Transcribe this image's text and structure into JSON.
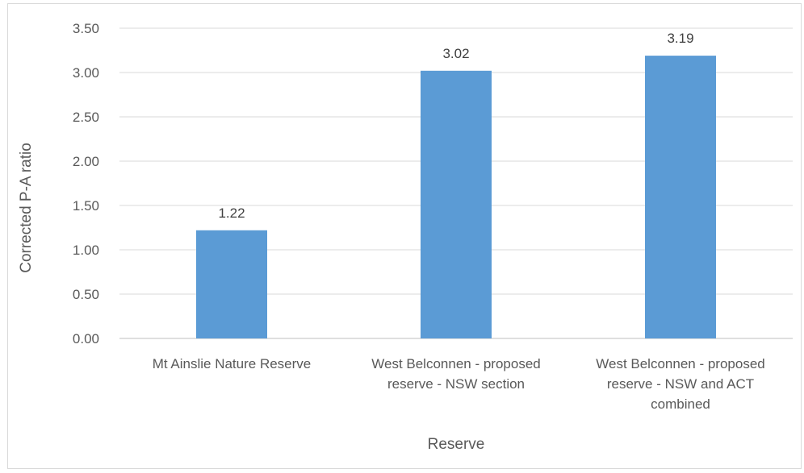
{
  "chart_data": {
    "type": "bar",
    "title": "",
    "xlabel": "Reserve",
    "ylabel": "Corrected P-A ratio",
    "categories": [
      [
        "Mt Ainslie Nature Reserve"
      ],
      [
        "West Belconnen - proposed",
        "reserve - NSW section"
      ],
      [
        "West Belconnen - proposed",
        "reserve - NSW and ACT",
        "combined"
      ]
    ],
    "values": [
      1.22,
      3.02,
      3.19
    ],
    "data_labels": [
      "1.22",
      "3.02",
      "3.19"
    ],
    "ylim": [
      0,
      3.5
    ],
    "y_ticks": [
      "0.00",
      "0.50",
      "1.00",
      "1.50",
      "2.00",
      "2.50",
      "3.00",
      "3.50"
    ],
    "grid": true,
    "legend": "none",
    "colors": {
      "bar": "#5b9bd5",
      "grid": "#d9d9d9",
      "axis": "#bfbfbf"
    }
  }
}
